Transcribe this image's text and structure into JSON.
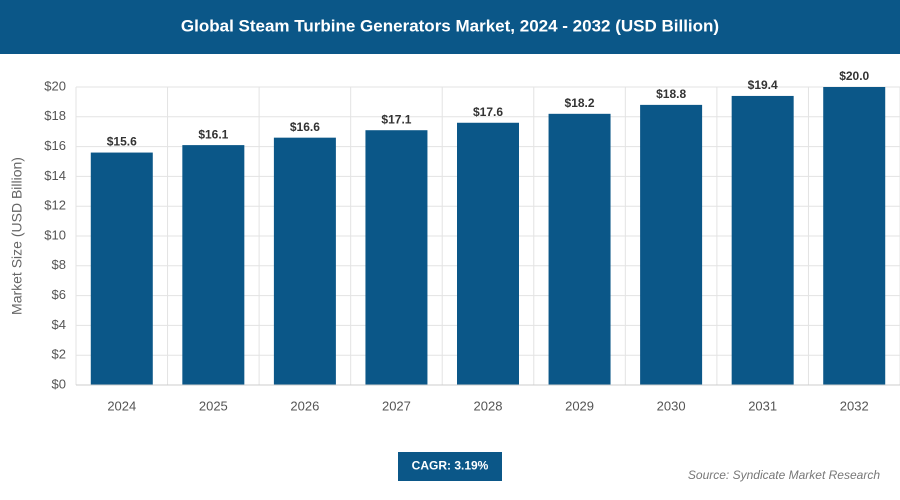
{
  "chart_data": {
    "type": "bar",
    "title": "Global Steam Turbine Generators Market, 2024 - 2032 (USD Billion)",
    "y_label": "Market Size (USD Billion)",
    "categories": [
      "2024",
      "2025",
      "2026",
      "2027",
      "2028",
      "2029",
      "2030",
      "2031",
      "2032"
    ],
    "values": [
      15.6,
      16.1,
      16.6,
      17.1,
      17.6,
      18.2,
      18.8,
      19.4,
      20.0
    ],
    "value_labels": [
      "$15.6",
      "$16.1",
      "$16.6",
      "$17.1",
      "$17.6",
      "$18.2",
      "$18.8",
      "$19.4",
      "$20.0"
    ],
    "color": "#0b5788",
    "ylim": [
      0,
      20
    ],
    "yticks": [
      {
        "value": 0,
        "label": "$0"
      },
      {
        "value": 2,
        "label": "$2"
      },
      {
        "value": 4,
        "label": "$4"
      },
      {
        "value": 6,
        "label": "$6"
      },
      {
        "value": 8,
        "label": "$8"
      },
      {
        "value": 10,
        "label": "$10"
      },
      {
        "value": 12,
        "label": "$12"
      },
      {
        "value": 14,
        "label": "$14"
      },
      {
        "value": 16,
        "label": "$16"
      },
      {
        "value": 18,
        "label": "$18"
      },
      {
        "value": 20,
        "label": "$20"
      }
    ],
    "grid": true,
    "cagr": "CAGR: 3.19%",
    "source": "Source: Syndicate Market Research"
  }
}
